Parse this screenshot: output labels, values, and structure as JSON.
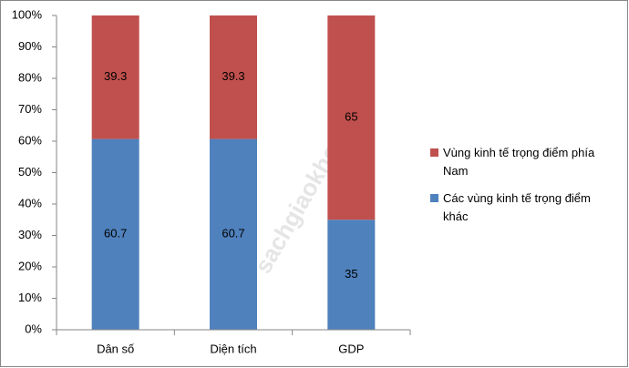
{
  "chart_data": {
    "type": "stacked_bar",
    "categories": [
      "Dân số",
      "Diện tích",
      "GDP"
    ],
    "series": [
      {
        "name": "Các vùng kinh tế trọng điểm khác",
        "color": "#4f81bd",
        "values": [
          60.7,
          60.7,
          35
        ]
      },
      {
        "name": "Vùng kinh tế trọng điểm phía Nam",
        "color": "#c0504d",
        "values": [
          39.3,
          39.3,
          65
        ]
      }
    ],
    "ylim": [
      0,
      100
    ],
    "yticks": [
      {
        "value": 0,
        "label": "0%"
      },
      {
        "value": 10,
        "label": "10%"
      },
      {
        "value": 20,
        "label": "20%"
      },
      {
        "value": 30,
        "label": "30%"
      },
      {
        "value": 40,
        "label": "40%"
      },
      {
        "value": 50,
        "label": "50%"
      },
      {
        "value": 60,
        "label": "60%"
      },
      {
        "value": 70,
        "label": "70%"
      },
      {
        "value": 80,
        "label": "80%"
      },
      {
        "value": 90,
        "label": "90%"
      },
      {
        "value": 100,
        "label": "100%"
      }
    ],
    "grid": false,
    "legend": "right",
    "watermark": "sachgiaokhoa.info"
  }
}
